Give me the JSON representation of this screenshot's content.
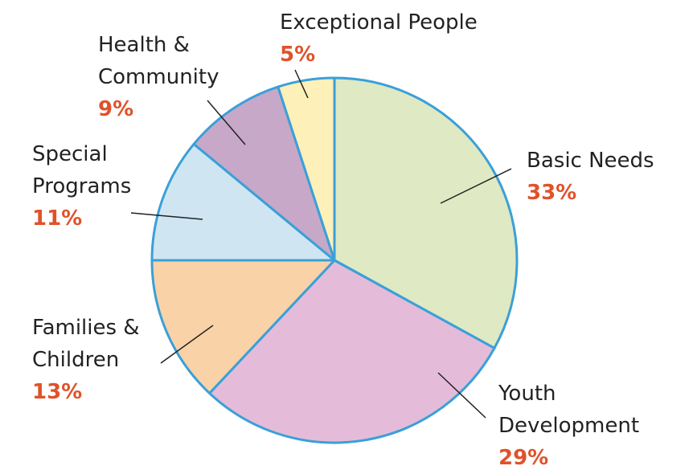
{
  "chart_data": {
    "type": "pie",
    "categories": [
      "Basic Needs",
      "Youth\nDevelopment",
      "Families &\nChildren",
      "Special\nPrograms",
      "Health &\nCommunity",
      "Exceptional People"
    ],
    "values": [
      33,
      29,
      13,
      11,
      9,
      5
    ],
    "value_labels": [
      "33%",
      "29%",
      "13%",
      "11%",
      "9%",
      "5%"
    ],
    "colors": [
      "#dfe9c4",
      "#e4bcd9",
      "#f9d2a8",
      "#cfe6f2",
      "#c8a8c8",
      "#fdf0b8"
    ]
  }
}
